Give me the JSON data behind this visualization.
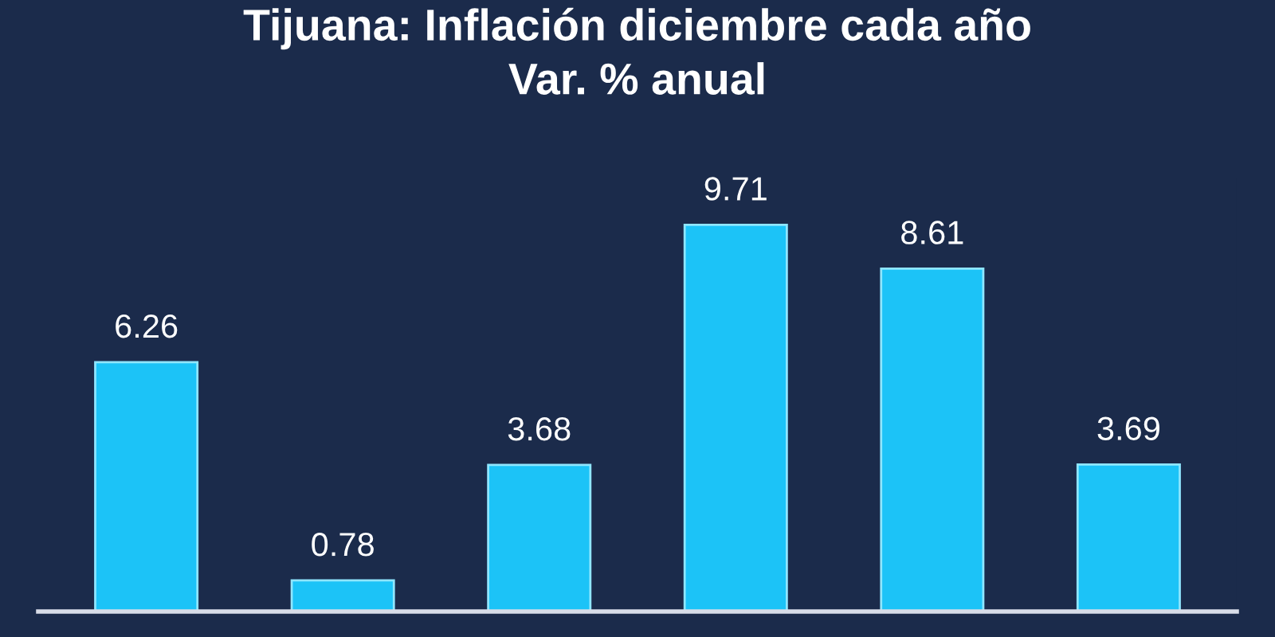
{
  "chart_data": {
    "type": "bar",
    "title": "Tijuana: Inflación diciembre cada año",
    "subtitle": "Var. % anual",
    "categories": [
      null,
      null,
      null,
      null,
      null,
      null
    ],
    "values": [
      6.26,
      0.78,
      3.68,
      9.71,
      8.61,
      3.69
    ],
    "color": "#1cc3f7",
    "data_labels": true,
    "grid": false,
    "legend": false
  }
}
